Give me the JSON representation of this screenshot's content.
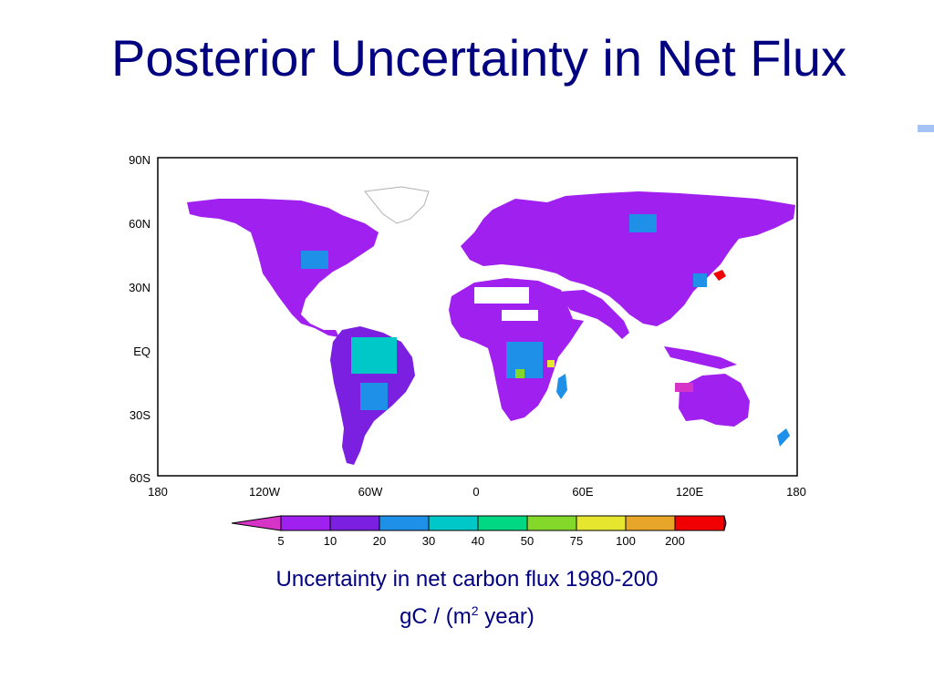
{
  "slide": {
    "title": "Posterior Uncertainty in Net Flux",
    "accent_color": "#000080",
    "rule_color": "#a4c2f4"
  },
  "map": {
    "lat_labels": [
      "90N",
      "60N",
      "30N",
      "EQ",
      "30S",
      "60S"
    ],
    "lon_labels": [
      "180",
      "120W",
      "60W",
      "0",
      "60E",
      "120E",
      "180"
    ],
    "colorbar": {
      "levels": [
        "5",
        "10",
        "20",
        "30",
        "40",
        "50",
        "75",
        "100",
        "200"
      ],
      "colors": [
        "#d633c7",
        "#a020f0",
        "#7b1fe0",
        "#1e90e8",
        "#00c8c8",
        "#00d884",
        "#84d82a",
        "#e6e62e",
        "#e8a628",
        "#f00000",
        "#e8238c"
      ]
    }
  },
  "caption": {
    "line1": "Uncertainty in net carbon flux 1980-200",
    "line2_prefix": "gC / (m",
    "line2_sup": "2",
    "line2_suffix": " year)"
  }
}
